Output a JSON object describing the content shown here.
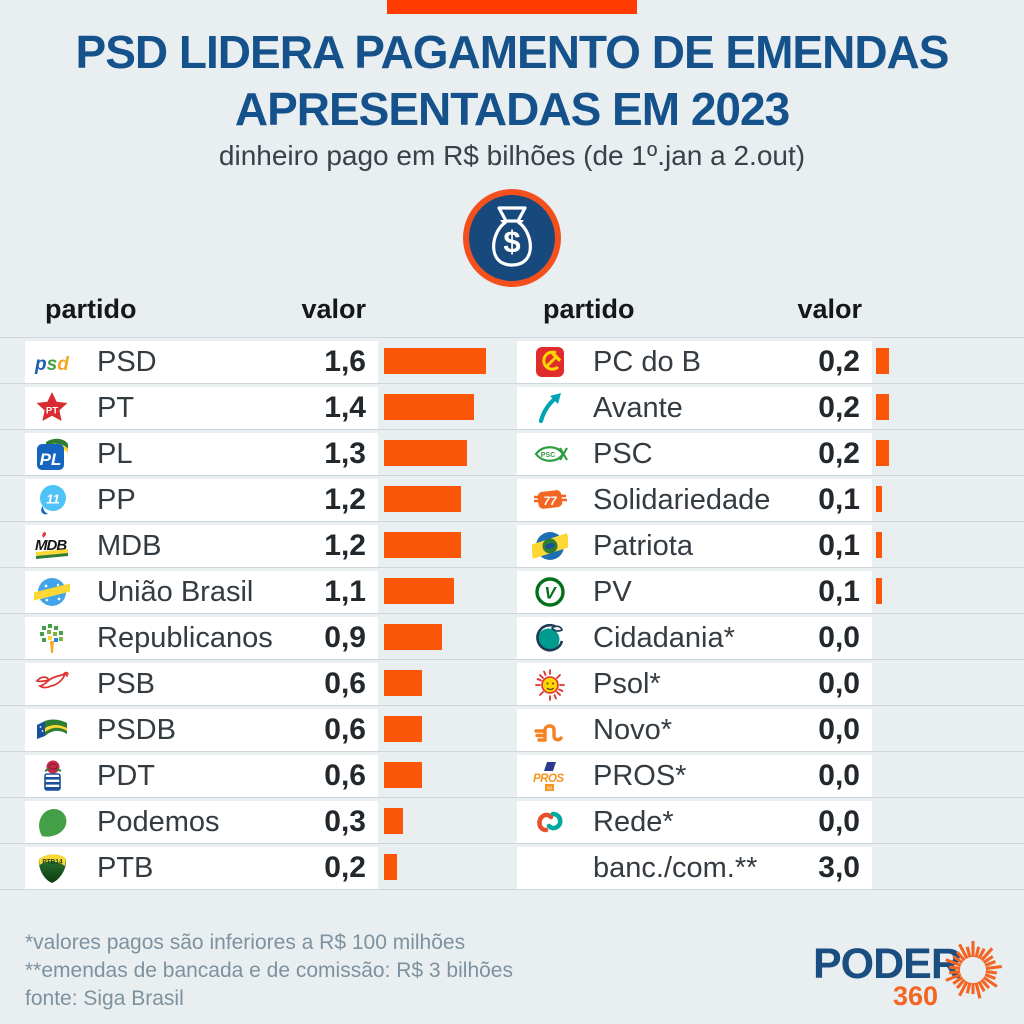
{
  "page": {
    "background": "#e9eef1",
    "accent_orange": "#fb5607",
    "topbar_color": "#ff3b00",
    "title_color": "#15518a"
  },
  "header": {
    "title_line1": "PSD LIDERA PAGAMENTO DE EMENDAS",
    "title_line2": "APRESENTADAS EM 2023",
    "subtitle": "dinheiro pago em R$ bilhões (de 1º.jan a 2.out)"
  },
  "table": {
    "col_party": "partido",
    "col_value": "valor",
    "left": [
      {
        "logo": "psd",
        "party": "PSD",
        "label": "1,6",
        "value": 1.6
      },
      {
        "logo": "pt",
        "party": "PT",
        "label": "1,4",
        "value": 1.4
      },
      {
        "logo": "pl",
        "party": "PL",
        "label": "1,3",
        "value": 1.3
      },
      {
        "logo": "pp",
        "party": "PP",
        "label": "1,2",
        "value": 1.2
      },
      {
        "logo": "mdb",
        "party": "MDB",
        "label": "1,2",
        "value": 1.2
      },
      {
        "logo": "uniao",
        "party": "União Brasil",
        "label": "1,1",
        "value": 1.1
      },
      {
        "logo": "republicanos",
        "party": "Republicanos",
        "label": "0,9",
        "value": 0.9
      },
      {
        "logo": "psb",
        "party": "PSB",
        "label": "0,6",
        "value": 0.6
      },
      {
        "logo": "psdb",
        "party": "PSDB",
        "label": "0,6",
        "value": 0.6
      },
      {
        "logo": "pdt",
        "party": "PDT",
        "label": "0,6",
        "value": 0.6
      },
      {
        "logo": "podemos",
        "party": "Podemos",
        "label": "0,3",
        "value": 0.3
      },
      {
        "logo": "ptb",
        "party": "PTB",
        "label": "0,2",
        "value": 0.2
      }
    ],
    "right": [
      {
        "logo": "pcdob",
        "party": "PC do B",
        "label": "0,2",
        "value": 0.2
      },
      {
        "logo": "avante",
        "party": "Avante",
        "label": "0,2",
        "value": 0.2
      },
      {
        "logo": "psc",
        "party": "PSC",
        "label": "0,2",
        "value": 0.2
      },
      {
        "logo": "solidariedade",
        "party": "Solidariedade",
        "label": "0,1",
        "value": 0.1
      },
      {
        "logo": "patriota",
        "party": "Patriota",
        "label": "0,1",
        "value": 0.1
      },
      {
        "logo": "pv",
        "party": "PV",
        "label": "0,1",
        "value": 0.1
      },
      {
        "logo": "cidadania",
        "party": "Cidadania*",
        "label": "0,0",
        "value": 0.0
      },
      {
        "logo": "psol",
        "party": "Psol*",
        "label": "0,0",
        "value": 0.0
      },
      {
        "logo": "novo",
        "party": "Novo*",
        "label": "0,0",
        "value": 0.0
      },
      {
        "logo": "pros",
        "party": "PROS*",
        "label": "0,0",
        "value": 0.0
      },
      {
        "logo": "rede",
        "party": "Rede*",
        "label": "0,0",
        "value": 0.0
      },
      {
        "logo": null,
        "party": "banc./com.**",
        "label": "3,0",
        "value": 3.0,
        "bar": false
      }
    ]
  },
  "footnotes": [
    "*valores pagos são inferiores a R$ 100 milhões",
    "**emendas de bancada e de comissão: R$ 3 bilhões",
    "fonte: Siga Brasil"
  ],
  "brand": {
    "name": "PODER",
    "number": "360"
  },
  "chart_data": {
    "type": "bar",
    "title": "PSD LIDERA PAGAMENTO DE EMENDAS APRESENTADAS EM 2023",
    "subtitle": "dinheiro pago em R$ bilhões (de 1º.jan a 2.out)",
    "unit": "R$ bilhões",
    "orientation": "horizontal",
    "bar_color": "#fb5607",
    "categories": [
      "PSD",
      "PT",
      "PL",
      "PP",
      "MDB",
      "União Brasil",
      "Republicanos",
      "PSB",
      "PSDB",
      "PDT",
      "Podemos",
      "PTB",
      "PC do B",
      "Avante",
      "PSC",
      "Solidariedade",
      "Patriota",
      "PV",
      "Cidadania*",
      "Psol*",
      "Novo*",
      "PROS*",
      "Rede*",
      "banc./com.**"
    ],
    "values": [
      1.6,
      1.4,
      1.3,
      1.2,
      1.2,
      1.1,
      0.9,
      0.6,
      0.6,
      0.6,
      0.3,
      0.2,
      0.2,
      0.2,
      0.2,
      0.1,
      0.1,
      0.1,
      0.0,
      0.0,
      0.0,
      0.0,
      0.0,
      3.0
    ],
    "xlim": [
      0,
      1.6
    ],
    "notes": [
      "*valores pagos são inferiores a R$ 100 milhões",
      "**emendas de bancada e de comissão: R$ 3 bilhões"
    ],
    "source": "Siga Brasil"
  }
}
